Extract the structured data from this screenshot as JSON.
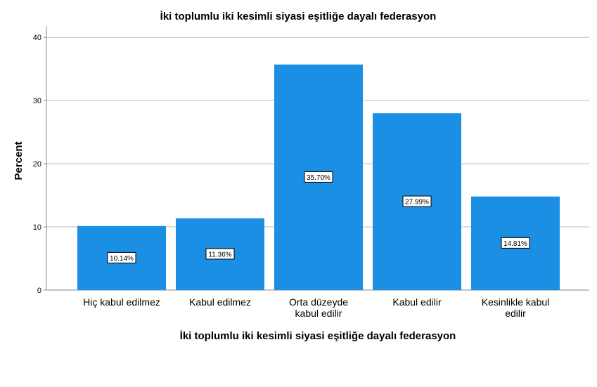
{
  "chart_data": {
    "type": "bar",
    "title": "İki toplumlu iki kesimli siyasi eşitliğe dayalı federasyon",
    "xlabel": "İki toplumlu iki kesimli siyasi eşitliğe dayalı federasyon",
    "ylabel": "Percent",
    "ylim": [
      0,
      40
    ],
    "yticks": [
      0,
      10,
      20,
      30,
      40
    ],
    "grid": true,
    "bar_color": "#1a8fe3",
    "categories": [
      [
        "Hiç kabul edilmez"
      ],
      [
        "Kabul edilmez"
      ],
      [
        "Orta düzeyde",
        "kabul edilir"
      ],
      [
        "Kabul edilir"
      ],
      [
        "Kesinlikle kabul",
        "edilir"
      ]
    ],
    "values": [
      10.14,
      11.36,
      35.7,
      27.99,
      14.81
    ],
    "data_labels": [
      "10.14%",
      "11.36%",
      "35.70%",
      "27.99%",
      "14.81%"
    ]
  }
}
